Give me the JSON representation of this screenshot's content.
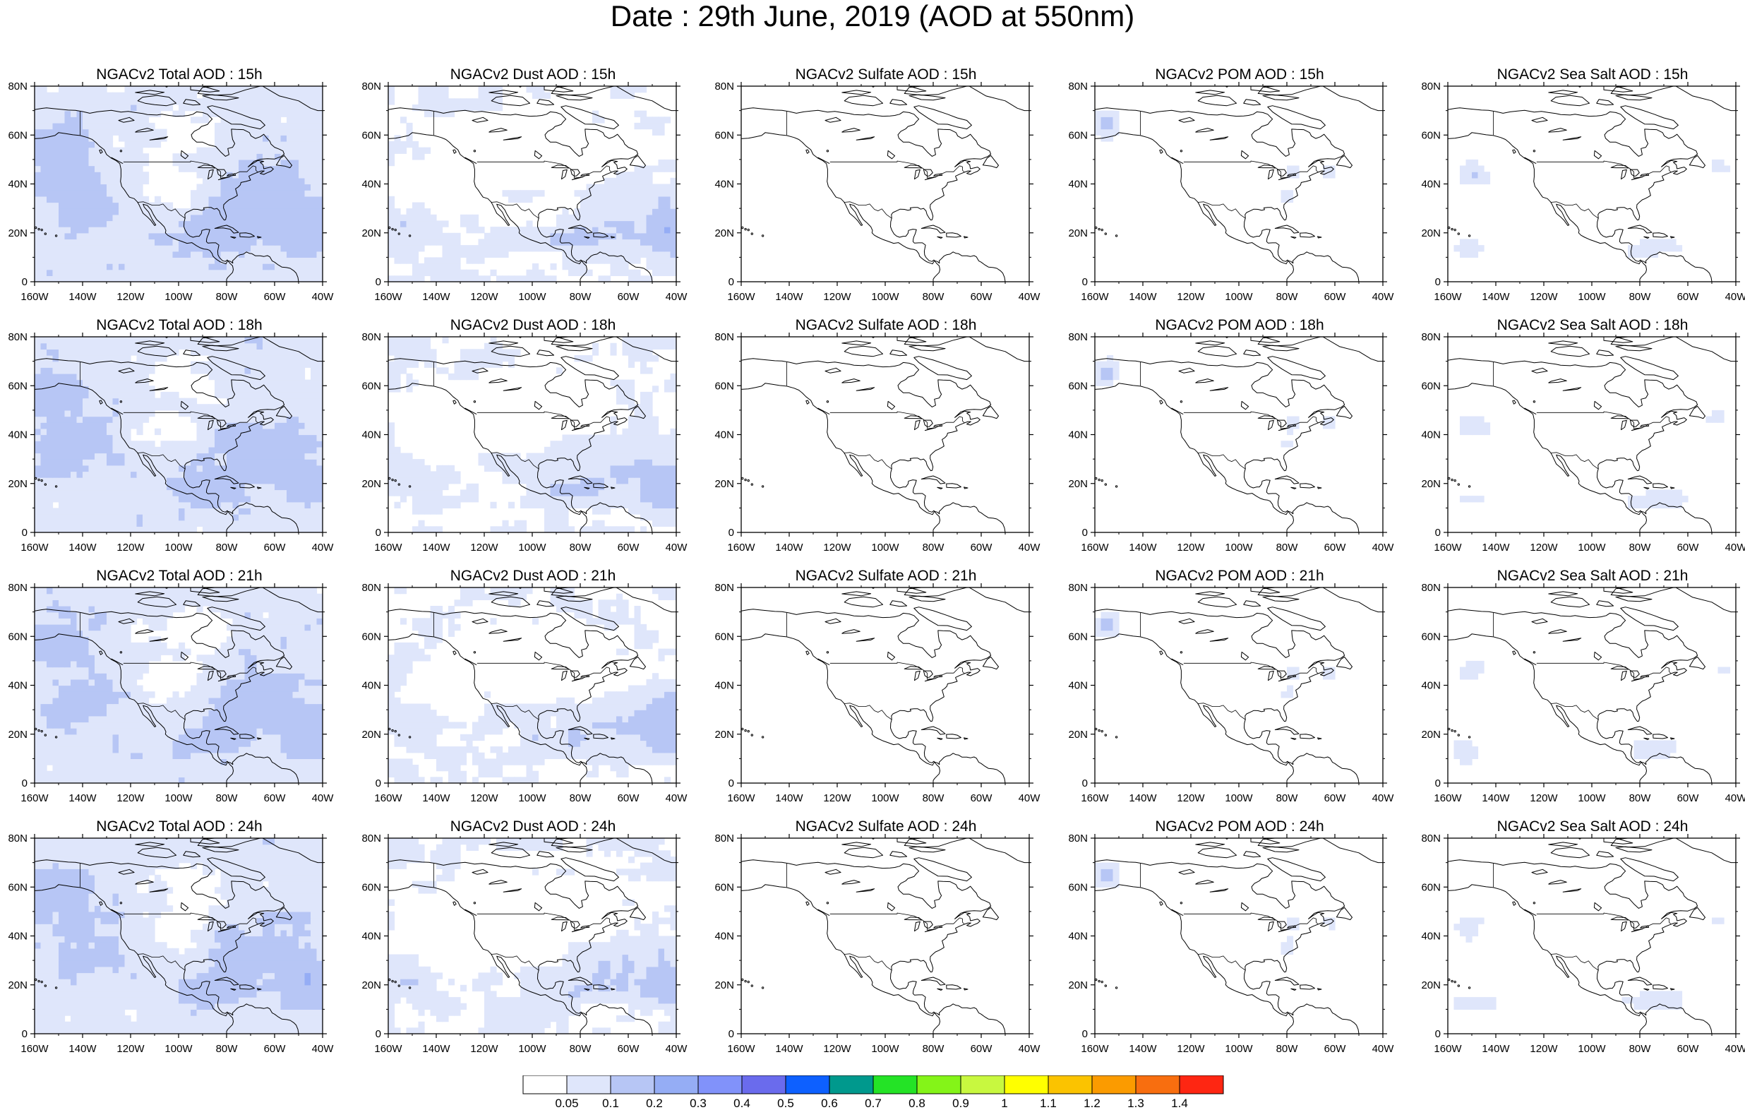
{
  "title": "Date : 29th June, 2019 (AOD at 550nm)",
  "panel_titles": [
    [
      "NGACv2 Total AOD : 15h",
      "NGACv2 Dust AOD : 15h",
      "NGACv2 Sulfate AOD : 15h",
      "NGACv2 POM AOD : 15h",
      "NGACv2 Sea Salt AOD : 15h"
    ],
    [
      "NGACv2 Total AOD : 18h",
      "NGACv2 Dust AOD : 18h",
      "NGACv2 Sulfate AOD : 18h",
      "NGACv2 POM AOD : 18h",
      "NGACv2 Sea Salt AOD : 18h"
    ],
    [
      "NGACv2 Total AOD : 21h",
      "NGACv2 Dust AOD : 21h",
      "NGACv2 Sulfate AOD : 21h",
      "NGACv2 POM AOD : 21h",
      "NGACv2 Sea Salt AOD : 21h"
    ],
    [
      "NGACv2 Total AOD : 24h",
      "NGACv2 Dust AOD : 24h",
      "NGACv2 Sulfate AOD : 24h",
      "NGACv2 POM AOD : 24h",
      "NGACv2 Sea Salt  AOD : 24h"
    ]
  ],
  "lat_ticks": [
    "0",
    "20N",
    "40N",
    "60N",
    "80N"
  ],
  "lon_ticks": [
    "160W",
    "140W",
    "120W",
    "100W",
    "80W",
    "60W",
    "40W"
  ],
  "map_extent": {
    "lon_min": -160,
    "lon_max": -40,
    "lat_min": 0,
    "lat_max": 80
  },
  "colorbar": {
    "levels": [
      "0.05",
      "0.1",
      "0.2",
      "0.3",
      "0.4",
      "0.5",
      "0.6",
      "0.7",
      "0.8",
      "0.9",
      "1",
      "1.1",
      "1.2",
      "1.3",
      "1.4"
    ],
    "colors": [
      "#ffffff",
      "#dfe6fb",
      "#b7c6f5",
      "#95adf5",
      "#8192fa",
      "#6a6bed",
      "#0d60ff",
      "#00998d",
      "#24e326",
      "#84f418",
      "#c8f83f",
      "#ffff00",
      "#fbc300",
      "#fb9b00",
      "#f86e0f",
      "#fe2612"
    ]
  },
  "palette": {
    "light": "#dfe6fb",
    "medium": "#b7c6f5",
    "strong": "#95adf5",
    "intense": "#8192fa"
  }
}
